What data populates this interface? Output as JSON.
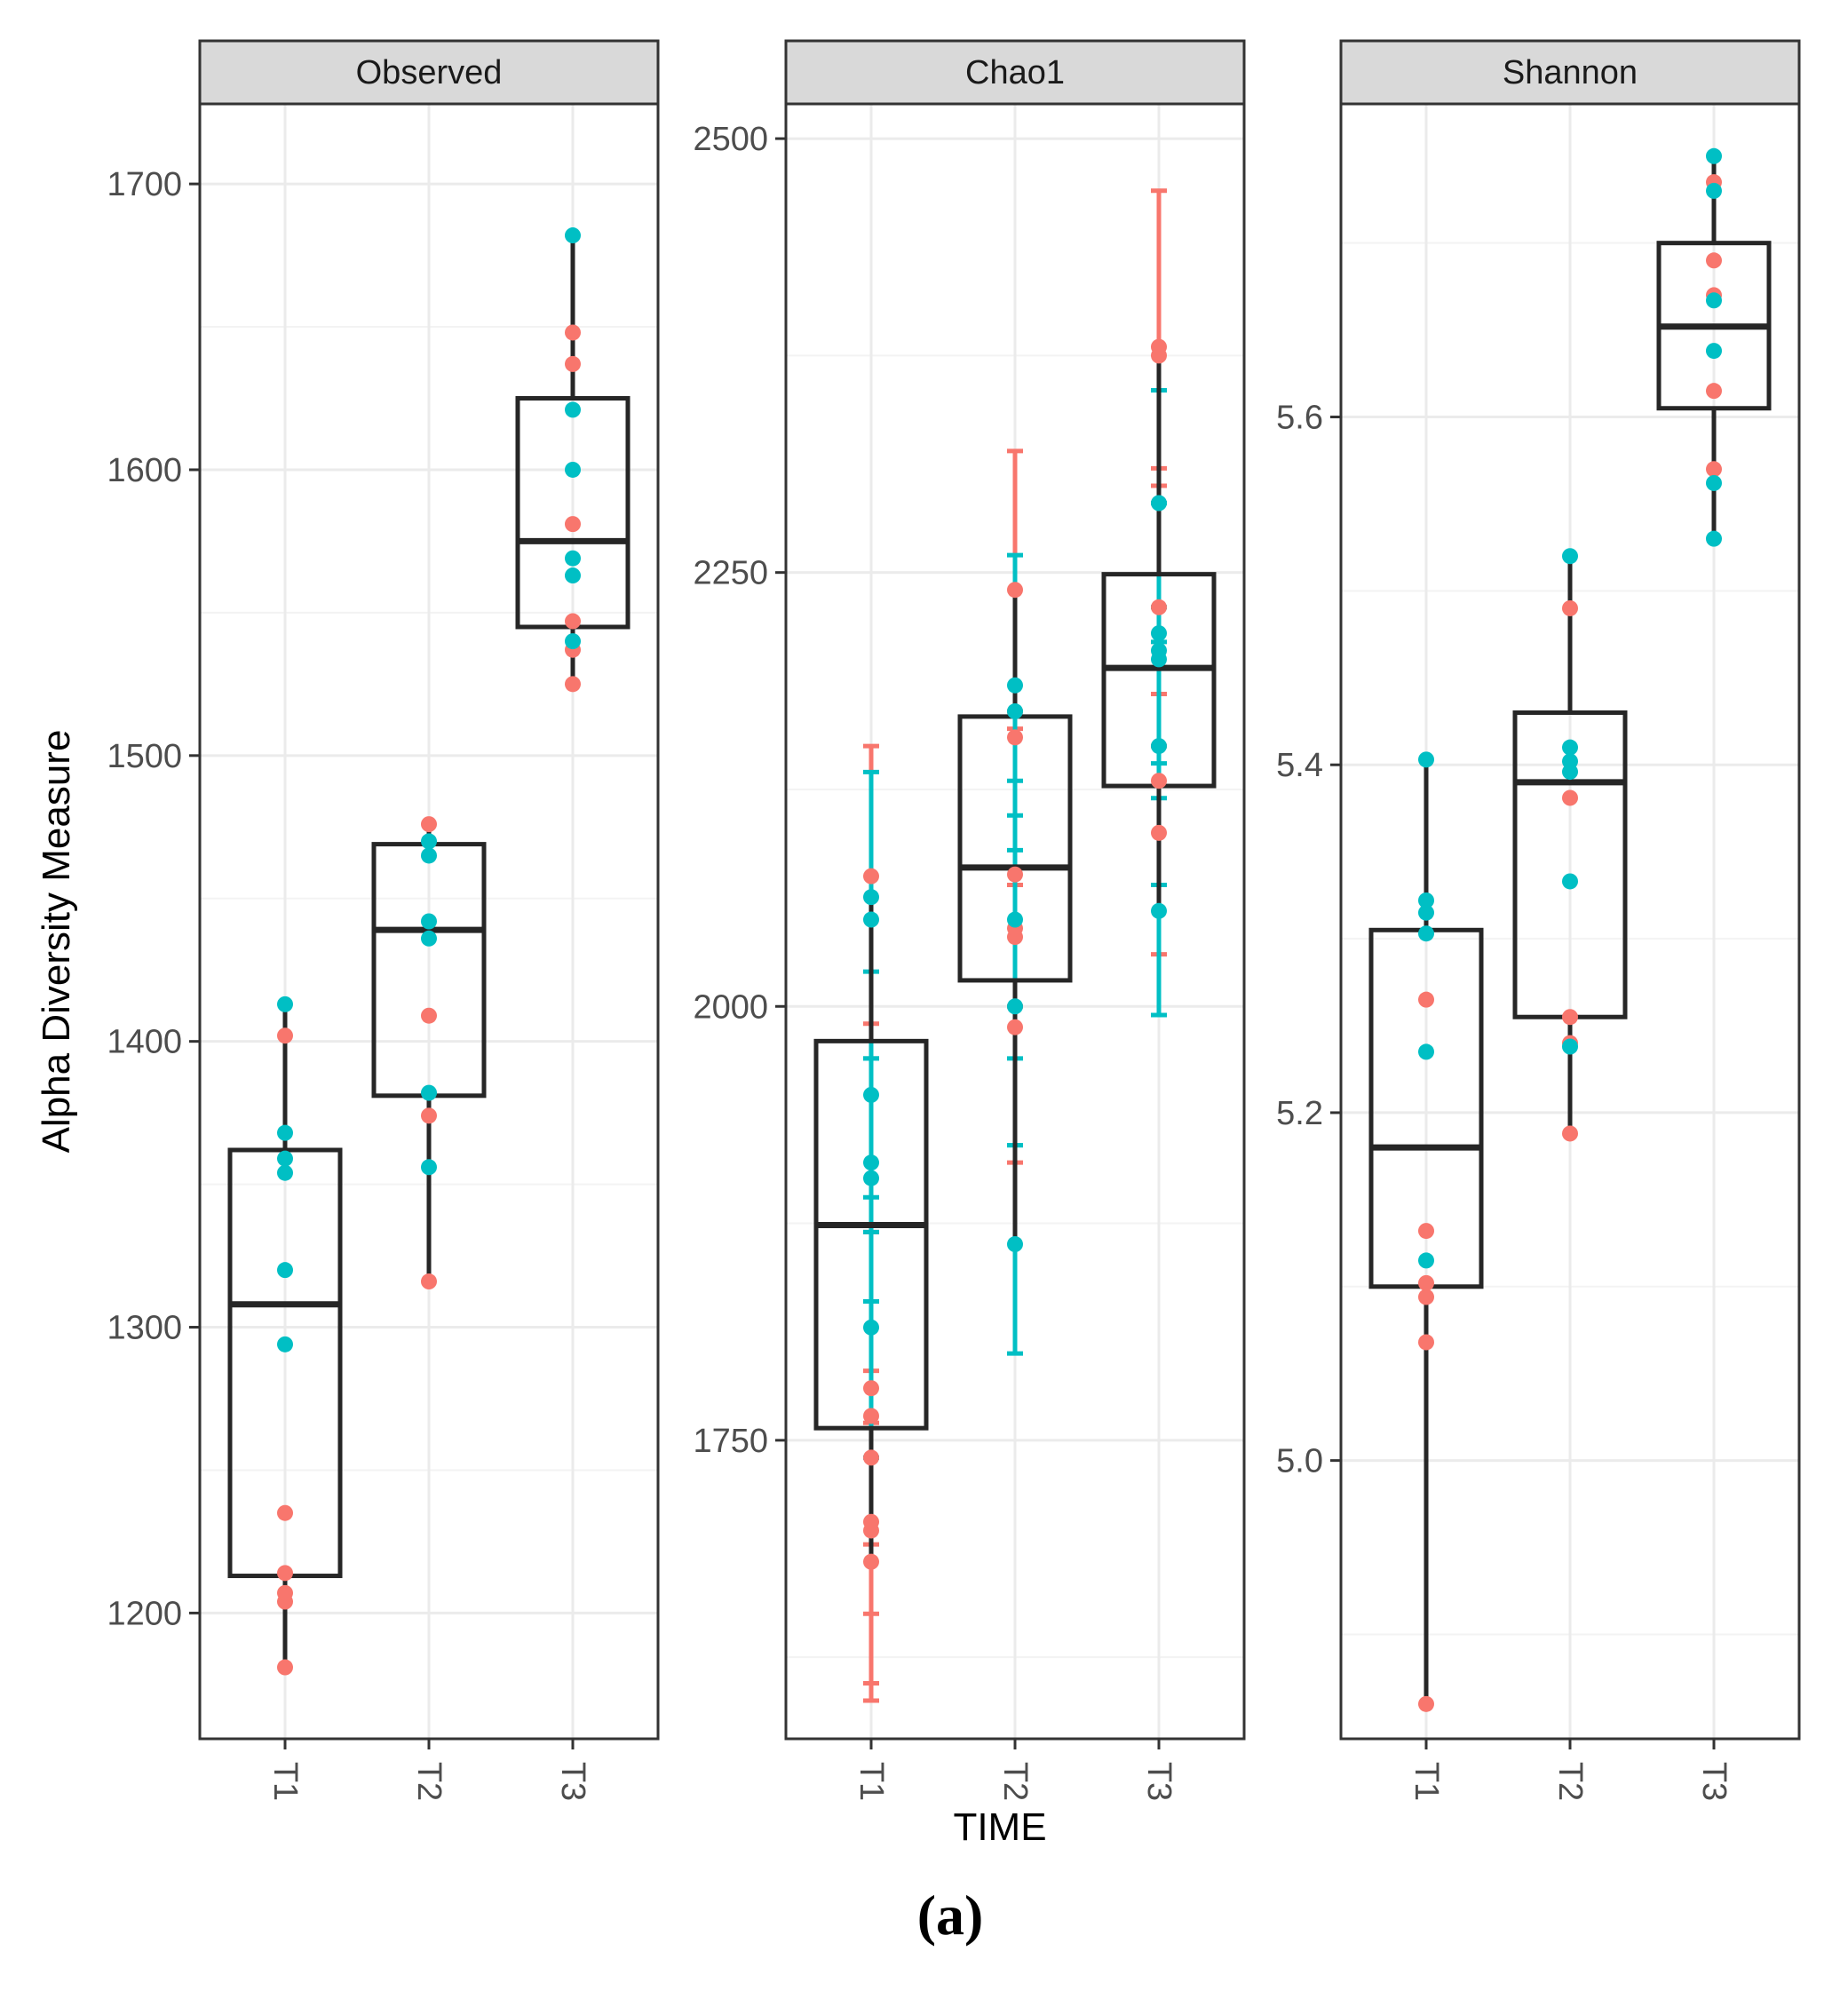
{
  "chart_data": {
    "type": "box",
    "ylabel": "Alpha Diversity Measure",
    "xlabel": "TIME",
    "caption": "(a)",
    "colors": {
      "group_a": "#F8766D",
      "group_b": "#00BFC4",
      "box": "#262626",
      "strip_bg": "#d9d9d9",
      "grid": "#ebebeb"
    },
    "categories": [
      "T1",
      "T2",
      "T3"
    ],
    "panels": [
      {
        "title": "Observed",
        "ylim": [
          1156,
          1728
        ],
        "yticks": [
          1200,
          1300,
          1400,
          1500,
          1600,
          1700
        ],
        "ytick_labels": [
          "1200",
          "1300",
          "1400",
          "1500",
          "1600",
          "1700"
        ],
        "boxes": [
          {
            "category": "T1",
            "lower_whisker": 1181,
            "q1": 1213,
            "median": 1308,
            "q3": 1362,
            "upper_whisker": 1413
          },
          {
            "category": "T2",
            "lower_whisker": 1316,
            "q1": 1381,
            "median": 1439,
            "q3": 1469,
            "upper_whisker": 1476
          },
          {
            "category": "T3",
            "lower_whisker": 1525,
            "q1": 1545,
            "median": 1575,
            "q3": 1625,
            "upper_whisker": 1682
          }
        ],
        "points": [
          {
            "category": "T1",
            "group": "a",
            "y": [
              1181,
              1204,
              1207,
              1214,
              1235,
              1402
            ]
          },
          {
            "category": "T1",
            "group": "b",
            "y": [
              1294,
              1320,
              1354,
              1359,
              1368,
              1413
            ]
          },
          {
            "category": "T2",
            "group": "a",
            "y": [
              1316,
              1374,
              1409,
              1476
            ]
          },
          {
            "category": "T2",
            "group": "b",
            "y": [
              1356,
              1382,
              1436,
              1442,
              1465,
              1470
            ]
          },
          {
            "category": "T3",
            "group": "a",
            "y": [
              1525,
              1537,
              1547,
              1581,
              1637,
              1648
            ]
          },
          {
            "category": "T3",
            "group": "b",
            "y": [
              1540,
              1563,
              1569,
              1600,
              1621,
              1682
            ]
          }
        ]
      },
      {
        "title": "Chao1",
        "ylim": [
          1578,
          2520
        ],
        "yticks": [
          1750,
          2000,
          2250,
          2500
        ],
        "ytick_labels": [
          "1750",
          "2000",
          "2250",
          "2500"
        ],
        "boxes": [
          {
            "category": "T1",
            "lower_whisker": 1680,
            "q1": 1757,
            "median": 1874,
            "q3": 1980,
            "upper_whisker": 2063
          },
          {
            "category": "T2",
            "lower_whisker": 1863,
            "q1": 2015,
            "median": 2080,
            "q3": 2167,
            "upper_whisker": 2240
          },
          {
            "category": "T3",
            "lower_whisker": 2055,
            "q1": 2127,
            "median": 2195,
            "q3": 2249,
            "upper_whisker": 2380
          }
        ],
        "points": [
          {
            "category": "T1",
            "group": "a",
            "y": [
              1680,
              1698,
              1703,
              1740,
              1764,
              1780,
              2075
            ]
          },
          {
            "category": "T1",
            "group": "b",
            "y": [
              1815,
              1901,
              1910,
              1949,
              2050,
              2063
            ]
          },
          {
            "category": "T2",
            "group": "a",
            "y": [
              1988,
              2040,
              2045,
              2076,
              2155,
              2240
            ]
          },
          {
            "category": "T2",
            "group": "b",
            "y": [
              1863,
              2000,
              2050,
              2170,
              2185
            ]
          },
          {
            "category": "T3",
            "group": "a",
            "y": [
              2100,
              2130,
              2230,
              2375,
              2380
            ]
          },
          {
            "category": "T3",
            "group": "b",
            "y": [
              2055,
              2150,
              2200,
              2205,
              2215,
              2290
            ]
          }
        ],
        "errorbars": [
          {
            "category": "T1",
            "group": "a",
            "items": [
              {
                "y": 1680,
                "lo": 1600,
                "hi": 1760
              },
              {
                "y": 1698,
                "lo": 1610,
                "hi": 1790
              },
              {
                "y": 1740,
                "lo": 1650,
                "hi": 1830
              },
              {
                "y": 1780,
                "lo": 1690,
                "hi": 1870
              },
              {
                "y": 2075,
                "lo": 1990,
                "hi": 2150
              }
            ]
          },
          {
            "category": "T1",
            "group": "b",
            "items": [
              {
                "y": 1815,
                "lo": 1740,
                "hi": 1890
              },
              {
                "y": 1901,
                "lo": 1830,
                "hi": 1970
              },
              {
                "y": 1949,
                "lo": 1870,
                "hi": 2020
              },
              {
                "y": 2050,
                "lo": 1970,
                "hi": 2135
              }
            ]
          },
          {
            "category": "T2",
            "group": "a",
            "items": [
              {
                "y": 1988,
                "lo": 1910,
                "hi": 2070
              },
              {
                "y": 2076,
                "lo": 2000,
                "hi": 2160
              },
              {
                "y": 2240,
                "lo": 2170,
                "hi": 2320
              }
            ]
          },
          {
            "category": "T2",
            "group": "b",
            "items": [
              {
                "y": 1863,
                "lo": 1800,
                "hi": 1920
              },
              {
                "y": 2000,
                "lo": 1920,
                "hi": 2090
              },
              {
                "y": 2050,
                "lo": 1970,
                "hi": 2130
              },
              {
                "y": 2185,
                "lo": 2110,
                "hi": 2260
              }
            ]
          },
          {
            "category": "T3",
            "group": "a",
            "items": [
              {
                "y": 2100,
                "lo": 2030,
                "hi": 2180
              },
              {
                "y": 2230,
                "lo": 2150,
                "hi": 2310
              },
              {
                "y": 2380,
                "lo": 2300,
                "hi": 2470
              }
            ]
          },
          {
            "category": "T3",
            "group": "b",
            "items": [
              {
                "y": 2055,
                "lo": 1995,
                "hi": 2120
              },
              {
                "y": 2150,
                "lo": 2070,
                "hi": 2230
              },
              {
                "y": 2215,
                "lo": 2140,
                "hi": 2290
              },
              {
                "y": 2290,
                "lo": 2210,
                "hi": 2355
              }
            ]
          }
        ]
      },
      {
        "title": "Shannon",
        "ylim": [
          4.84,
          5.78
        ],
        "yticks": [
          5.0,
          5.2,
          5.4,
          5.6
        ],
        "ytick_labels": [
          "5.0",
          "5.2",
          "5.4",
          "5.6"
        ],
        "boxes": [
          {
            "category": "T1",
            "lower_whisker": 4.86,
            "q1": 5.1,
            "median": 5.18,
            "q3": 5.305,
            "upper_whisker": 5.403
          },
          {
            "category": "T2",
            "lower_whisker": 5.188,
            "q1": 5.255,
            "median": 5.39,
            "q3": 5.43,
            "upper_whisker": 5.52
          },
          {
            "category": "T3",
            "lower_whisker": 5.53,
            "q1": 5.605,
            "median": 5.652,
            "q3": 5.7,
            "upper_whisker": 5.75
          }
        ],
        "points": [
          {
            "category": "T1",
            "group": "a",
            "y": [
              4.86,
              5.068,
              5.094,
              5.102,
              5.132,
              5.265
            ]
          },
          {
            "category": "T1",
            "group": "b",
            "y": [
              5.115,
              5.235,
              5.303,
              5.315,
              5.322,
              5.403
            ]
          },
          {
            "category": "T2",
            "group": "a",
            "y": [
              5.188,
              5.24,
              5.255,
              5.381,
              5.49
            ]
          },
          {
            "category": "T2",
            "group": "b",
            "y": [
              5.238,
              5.333,
              5.396,
              5.402,
              5.41,
              5.52
            ]
          },
          {
            "category": "T3",
            "group": "a",
            "y": [
              5.57,
              5.615,
              5.67,
              5.69,
              5.735
            ]
          },
          {
            "category": "T3",
            "group": "b",
            "y": [
              5.53,
              5.562,
              5.638,
              5.667,
              5.73,
              5.75
            ]
          }
        ]
      }
    ]
  }
}
